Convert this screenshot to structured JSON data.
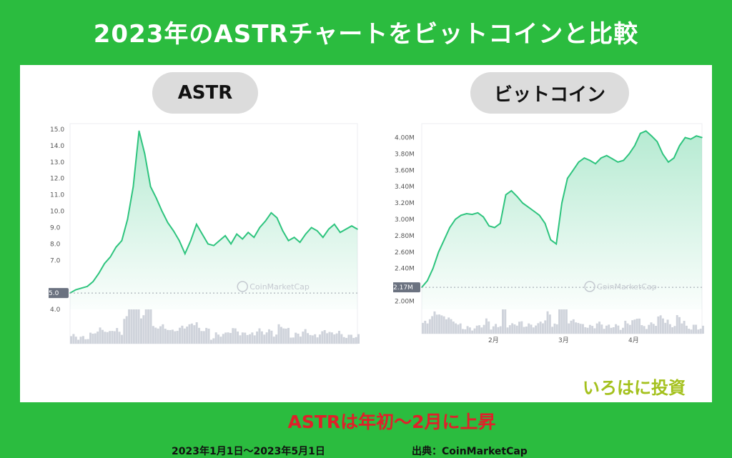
{
  "title": "2023年のASTRチャートをビットコインと比較",
  "caption": "ASTRは年初～2月に上昇",
  "period": "2023年1月1日～2023年5月1日",
  "source": "出典：CoinMarketCap",
  "brand": "いろはに投資",
  "colors": {
    "background": "#2bbc3f",
    "line": "#2ec47e",
    "caption": "#e0202a",
    "brand": "#a4c11d",
    "volume": "#cfd3db"
  },
  "chart_data": [
    {
      "type": "line",
      "label": "ASTR",
      "watermark": "CoinMarketCap",
      "y_ticks": [
        "15.0",
        "14.0",
        "13.0",
        "12.0",
        "11.0",
        "10.0",
        "9.0",
        "8.0",
        "7.0",
        "5.0",
        "4.0"
      ],
      "current_label": "5.0",
      "ylim": [
        4.0,
        15.0
      ],
      "x": [
        0,
        2,
        4,
        6,
        8,
        10,
        12,
        14,
        16,
        18,
        20,
        22,
        24,
        26,
        28,
        30,
        32,
        34,
        36,
        38,
        40,
        42,
        44,
        46,
        48,
        50,
        52,
        54,
        56,
        58,
        60,
        62,
        64,
        66,
        68,
        70,
        72,
        74,
        76,
        78,
        80,
        82,
        84,
        86,
        88,
        90,
        92,
        94,
        96,
        98,
        100
      ],
      "values": [
        5.0,
        5.2,
        5.3,
        5.4,
        5.7,
        6.2,
        6.8,
        7.2,
        7.8,
        8.2,
        9.5,
        11.5,
        14.9,
        13.5,
        11.5,
        10.8,
        10.0,
        9.3,
        8.8,
        8.2,
        7.4,
        8.2,
        9.2,
        8.6,
        8.0,
        7.9,
        8.2,
        8.5,
        8.0,
        8.6,
        8.3,
        8.7,
        8.4,
        9.0,
        9.4,
        9.9,
        9.6,
        8.8,
        8.2,
        8.4,
        8.1,
        8.6,
        9.0,
        8.8,
        8.4,
        8.9,
        9.2,
        8.7,
        8.9,
        9.1,
        8.9
      ]
    },
    {
      "type": "line",
      "label": "ビットコイン",
      "watermark": "CoinMarketCap",
      "y_ticks": [
        "4.00M",
        "3.80M",
        "3.60M",
        "3.40M",
        "3.20M",
        "3.00M",
        "2.80M",
        "2.60M",
        "2.40M",
        "2.00M"
      ],
      "current_label": "2.17M",
      "x_ticks": [
        "2月",
        "3月",
        "4月"
      ],
      "ylim": [
        1.9,
        4.1
      ],
      "x": [
        0,
        2,
        4,
        6,
        8,
        10,
        12,
        14,
        16,
        18,
        20,
        22,
        24,
        26,
        28,
        30,
        32,
        34,
        36,
        38,
        40,
        42,
        44,
        46,
        48,
        50,
        52,
        54,
        56,
        58,
        60,
        62,
        64,
        66,
        68,
        70,
        72,
        74,
        76,
        78,
        80,
        82,
        84,
        86,
        88,
        90,
        92,
        94,
        96,
        98,
        100
      ],
      "values": [
        2.17,
        2.25,
        2.4,
        2.6,
        2.75,
        2.9,
        3.0,
        3.05,
        3.07,
        3.06,
        3.08,
        3.03,
        2.92,
        2.9,
        2.95,
        3.3,
        3.35,
        3.28,
        3.2,
        3.15,
        3.1,
        3.05,
        2.95,
        2.75,
        2.7,
        3.2,
        3.5,
        3.6,
        3.7,
        3.75,
        3.72,
        3.68,
        3.75,
        3.78,
        3.74,
        3.7,
        3.72,
        3.8,
        3.9,
        4.05,
        4.08,
        4.02,
        3.95,
        3.8,
        3.7,
        3.75,
        3.9,
        4.0,
        3.98,
        4.02,
        4.0
      ]
    }
  ]
}
